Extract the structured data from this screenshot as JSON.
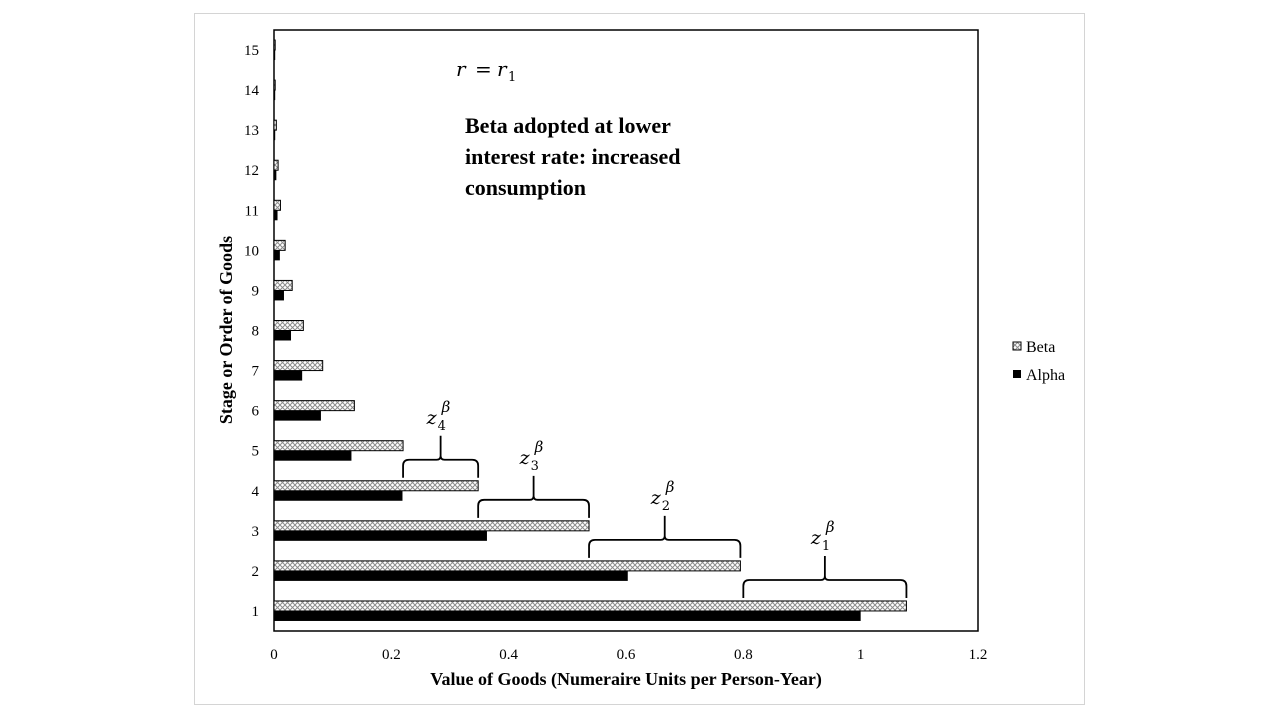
{
  "chart_data": {
    "type": "bar",
    "orientation": "horizontal",
    "categories": [
      "1",
      "2",
      "3",
      "4",
      "5",
      "6",
      "7",
      "8",
      "9",
      "10",
      "11",
      "12",
      "13",
      "14",
      "15"
    ],
    "series": [
      {
        "name": "Beta",
        "fill": "crosshatch",
        "values": [
          1.078,
          0.795,
          0.537,
          0.348,
          0.22,
          0.137,
          0.083,
          0.05,
          0.031,
          0.019,
          0.011,
          0.007,
          0.004,
          0.002,
          0.001
        ]
      },
      {
        "name": "Alpha",
        "fill": "solid-black",
        "values": [
          1.0,
          0.603,
          0.363,
          0.219,
          0.132,
          0.08,
          0.048,
          0.029,
          0.017,
          0.01,
          0.006,
          0.004,
          0.002,
          0.001,
          0.001
        ]
      }
    ],
    "xlabel": "Value of Goods (Numeraire Units per Person-Year)",
    "ylabel": "Stage or Order of Goods",
    "xlim": [
      0,
      1.2
    ],
    "xticks": [
      "0",
      "0.2",
      "0.4",
      "0.6",
      "0.8",
      "1",
      "1.2"
    ],
    "grid": false,
    "legend_position": "right",
    "colors": {
      "beta_hatch": "#9a9a9a",
      "alpha": "#000000",
      "frame": "#d4d4d4"
    },
    "annotations": {
      "rate_equation": {
        "lhs": "r",
        "eq": "=",
        "rhs": "r",
        "sub": "1"
      },
      "note_lines": [
        "Beta adopted at lower",
        "interest rate: increased",
        "consumption"
      ],
      "braces": [
        {
          "base": "z",
          "sub": "1",
          "sup": "β",
          "from": 0.8,
          "to": 1.078,
          "stage": 1
        },
        {
          "base": "z",
          "sub": "2",
          "sup": "β",
          "from": 0.537,
          "to": 0.795,
          "stage": 2
        },
        {
          "base": "z",
          "sub": "3",
          "sup": "β",
          "from": 0.348,
          "to": 0.537,
          "stage": 3
        },
        {
          "base": "z",
          "sub": "4",
          "sup": "β",
          "from": 0.22,
          "to": 0.348,
          "stage": 4
        }
      ]
    }
  }
}
